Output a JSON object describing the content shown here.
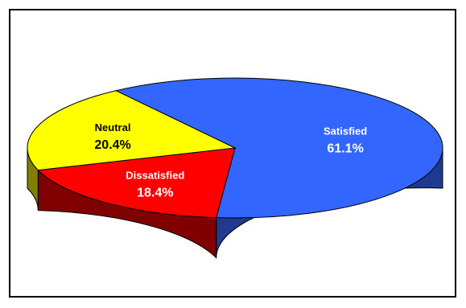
{
  "chart_data": {
    "type": "pie",
    "style": "3d",
    "title": "",
    "slices": [
      {
        "label": "Satisfied",
        "value": 61.1,
        "value_text": "61.1%",
        "color": "#3366ff",
        "side_color": "#1f3a8f",
        "label_color": "#ffffff"
      },
      {
        "label": "Dissatisfied",
        "value": 18.4,
        "value_text": "18.4%",
        "color": "#ff0000",
        "side_color": "#800000",
        "label_color": "#ffffff"
      },
      {
        "label": "Neutral",
        "value": 20.4,
        "value_text": "20.4%",
        "color": "#ffff00",
        "side_color": "#808000",
        "label_color": "#000000"
      }
    ],
    "legend": "none",
    "border_color": "#000000"
  }
}
